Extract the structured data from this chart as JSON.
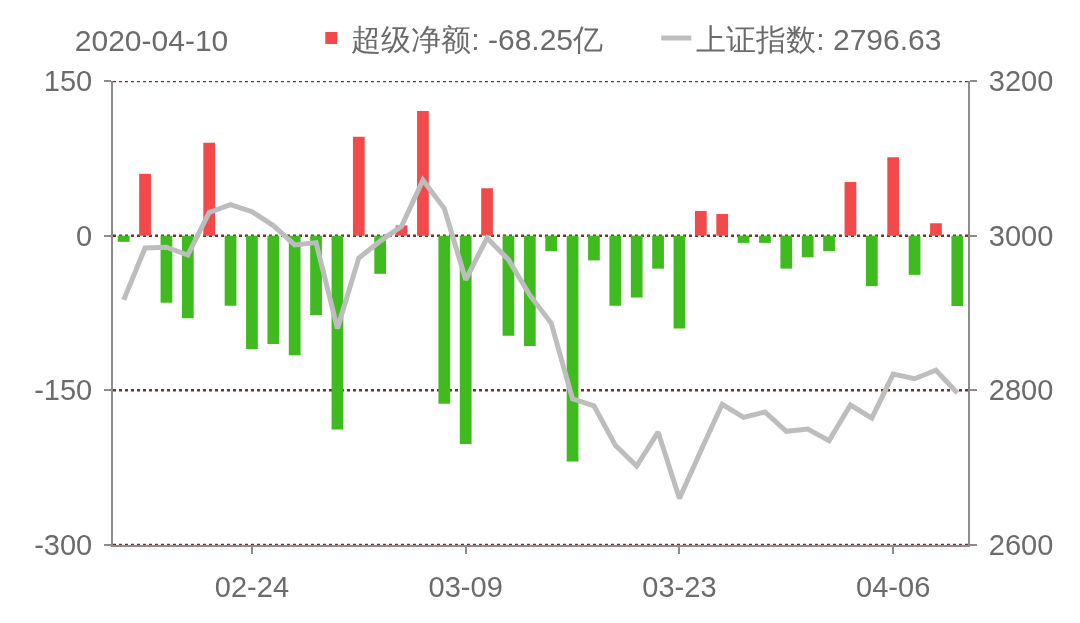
{
  "chart_data": {
    "type": "bar",
    "legend_title": "2020-04-10",
    "categories": [
      null,
      null,
      null,
      null,
      null,
      null,
      "02-24",
      null,
      null,
      null,
      null,
      null,
      null,
      null,
      null,
      null,
      "03-09",
      null,
      null,
      null,
      null,
      null,
      null,
      null,
      null,
      null,
      "03-23",
      null,
      null,
      null,
      null,
      null,
      null,
      null,
      null,
      null,
      "04-06",
      null,
      null,
      null
    ],
    "series": [
      {
        "name": "超级净额: -68.25亿",
        "color": "#f24a4a",
        "values": [
          -6,
          60,
          -65,
          -80,
          90,
          -68,
          -110,
          -105,
          -116,
          -77,
          -188,
          96,
          -37,
          10,
          121,
          -163,
          -202,
          46,
          -97,
          -107,
          -15,
          -219,
          -24,
          -68,
          -60,
          -32,
          -90,
          24,
          21,
          -7,
          -7,
          -32,
          -21,
          -15,
          52,
          -49,
          76,
          -38,
          12,
          -68.25
        ],
        "colors": [
          "#3fbb1f",
          "#f24a4a",
          "#3fbb1f",
          "#3fbb1f",
          "#f24a4a",
          "#3fbb1f",
          "#3fbb1f",
          "#3fbb1f",
          "#3fbb1f",
          "#3fbb1f",
          "#3fbb1f",
          "#f24a4a",
          "#3fbb1f",
          "#f24a4a",
          "#f24a4a",
          "#3fbb1f",
          "#3fbb1f",
          "#f24a4a",
          "#3fbb1f",
          "#3fbb1f",
          "#3fbb1f",
          "#3fbb1f",
          "#3fbb1f",
          "#3fbb1f",
          "#3fbb1f",
          "#3fbb1f",
          "#3fbb1f",
          "#f24a4a",
          "#f24a4a",
          "#3fbb1f",
          "#3fbb1f",
          "#3fbb1f",
          "#3fbb1f",
          "#3fbb1f",
          "#f24a4a",
          "#3fbb1f",
          "#f24a4a",
          "#3fbb1f",
          "#f24a4a",
          "#3fbb1f"
        ]
      },
      {
        "name": "上证指数: 2796.63",
        "type": "line",
        "axis": "y2",
        "color": "#bdbdbd",
        "values": [
          2917,
          2984,
          2985,
          2975,
          3030,
          3040,
          3031,
          3013,
          2988,
          2991,
          2880,
          2971,
          2993,
          3012,
          3072,
          3035,
          2943,
          2997,
          2969,
          2923,
          2887,
          2789,
          2780,
          2729,
          2702,
          2746,
          2660,
          2722,
          2782,
          2765,
          2772,
          2747,
          2750,
          2735,
          2781,
          2764,
          2821,
          2815,
          2826,
          2796.63
        ]
      }
    ],
    "ylim": [
      -300,
      150
    ],
    "yticks": [
      -300,
      -150,
      0,
      150
    ],
    "y2lim": [
      2600,
      3200
    ],
    "y2ticks": [
      2600,
      2800,
      3000,
      3200
    ],
    "grid": "y",
    "legend": "top"
  }
}
